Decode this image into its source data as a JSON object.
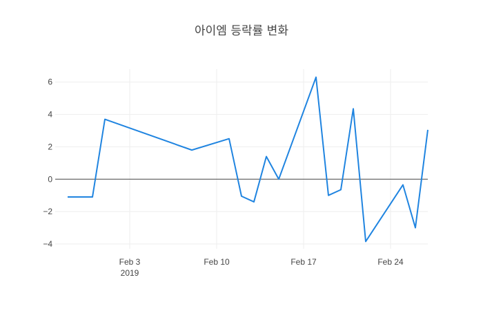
{
  "chart_data": {
    "type": "line",
    "title": "아이엠 등락률 변화",
    "xlabel": "",
    "ylabel": "",
    "xlim": [
      "2019-01-28",
      "2019-02-27"
    ],
    "ylim": [
      -4.3,
      6.8
    ],
    "y_ticks": [
      {
        "value": 6,
        "label": "6"
      },
      {
        "value": 4,
        "label": "4"
      },
      {
        "value": 2,
        "label": "2"
      },
      {
        "value": 0,
        "label": "0"
      },
      {
        "value": -2,
        "label": "−2"
      },
      {
        "value": -4,
        "label": "−4"
      }
    ],
    "x_ticks": [
      {
        "value": "2019-02-03",
        "label": "Feb 3",
        "sublabel": "2019"
      },
      {
        "value": "2019-02-10",
        "label": "Feb 10",
        "sublabel": ""
      },
      {
        "value": "2019-02-17",
        "label": "Feb 17",
        "sublabel": ""
      },
      {
        "value": "2019-02-24",
        "label": "Feb 24",
        "sublabel": ""
      }
    ],
    "grid": true,
    "zero_line": true,
    "color": "#1f84e0",
    "series": [
      {
        "points": [
          {
            "x": "2019-01-29",
            "y": -1.1
          },
          {
            "x": "2019-01-30",
            "y": -1.1
          },
          {
            "x": "2019-01-31",
            "y": -1.1
          },
          {
            "x": "2019-02-01",
            "y": 3.7
          },
          {
            "x": "2019-02-08",
            "y": 1.8
          },
          {
            "x": "2019-02-11",
            "y": 2.5
          },
          {
            "x": "2019-02-12",
            "y": -1.05
          },
          {
            "x": "2019-02-13",
            "y": -1.4
          },
          {
            "x": "2019-02-14",
            "y": 1.4
          },
          {
            "x": "2019-02-15",
            "y": 0.0
          },
          {
            "x": "2019-02-18",
            "y": 6.3
          },
          {
            "x": "2019-02-19",
            "y": -1.0
          },
          {
            "x": "2019-02-20",
            "y": -0.65
          },
          {
            "x": "2019-02-21",
            "y": 4.35
          },
          {
            "x": "2019-02-22",
            "y": -3.85
          },
          {
            "x": "2019-02-25",
            "y": -0.35
          },
          {
            "x": "2019-02-26",
            "y": -3.0
          },
          {
            "x": "2019-02-27",
            "y": 3.05
          }
        ]
      }
    ]
  }
}
